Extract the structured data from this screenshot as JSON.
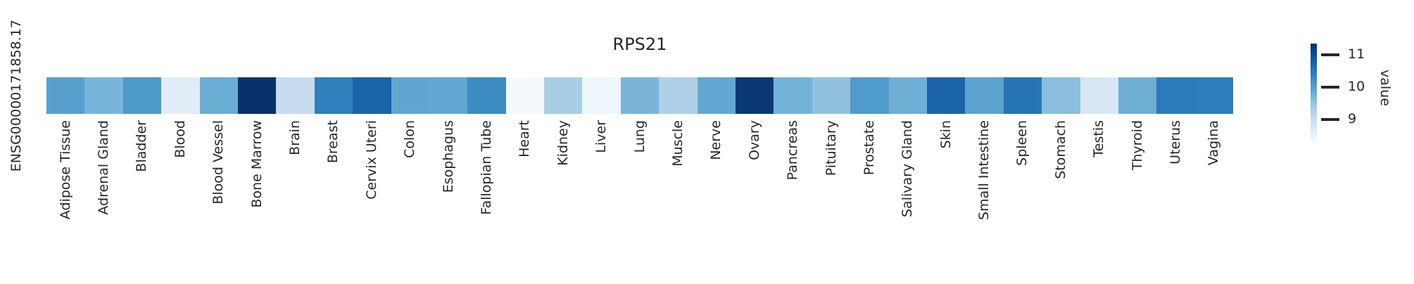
{
  "figure": {
    "title": "RPS21",
    "row_label": "ENSG00000171858.17",
    "colorbar": {
      "label": "value",
      "tick_labels": [
        "11",
        "10",
        "9"
      ]
    }
  },
  "chart_data": {
    "type": "heatmap",
    "title": "RPS21",
    "rows": [
      "ENSG00000171858.17"
    ],
    "categories": [
      "Adipose Tissue",
      "Adrenal Gland",
      "Bladder",
      "Blood",
      "Blood Vessel",
      "Bone Marrow",
      "Brain",
      "Breast",
      "Cervix Uteri",
      "Colon",
      "Esophagus",
      "Fallopian Tube",
      "Heart",
      "Kidney",
      "Liver",
      "Lung",
      "Muscle",
      "Nerve",
      "Ovary",
      "Pancreas",
      "Pituitary",
      "Prostate",
      "Salivary Gland",
      "Skin",
      "Small Intestine",
      "Spleen",
      "Stomach",
      "Testis",
      "Thyroid",
      "Uterus",
      "Vagina"
    ],
    "values": [
      10.0,
      9.7,
      10.1,
      8.6,
      9.85,
      11.35,
      9.05,
      10.4,
      10.7,
      9.9,
      9.9,
      10.3,
      8.35,
      9.35,
      8.4,
      9.7,
      9.3,
      9.9,
      11.25,
      9.75,
      9.55,
      10.05,
      9.8,
      10.7,
      9.95,
      10.55,
      9.6,
      8.75,
      9.8,
      10.45,
      10.45
    ],
    "cell_colors": [
      "#57a0cd",
      "#79b5da",
      "#4d99ca",
      "#e2ecf7",
      "#69add5",
      "#0a316b",
      "#c7dbef",
      "#2f7fbc",
      "#1b63a8",
      "#5fa6d1",
      "#61a7d2",
      "#3b8bc2",
      "#f5f9fe",
      "#a8cee4",
      "#eff5fc",
      "#7ab5d9",
      "#afd1e7",
      "#63a8d3",
      "#0a3874",
      "#74b2d8",
      "#92c1df",
      "#4f9bcb",
      "#6faed5",
      "#1b64a9",
      "#5ca3cf",
      "#2674b6",
      "#8bbddc",
      "#d9e7f5",
      "#6faed5",
      "#2b7bba",
      "#2d7cbb"
    ],
    "value_label": "value",
    "colorbar_ticks": [
      9,
      10,
      11
    ],
    "value_range_approx": [
      8.3,
      11.4
    ],
    "colormap": "Blues",
    "legend_position": "right",
    "x_tick_rotation": 90
  }
}
